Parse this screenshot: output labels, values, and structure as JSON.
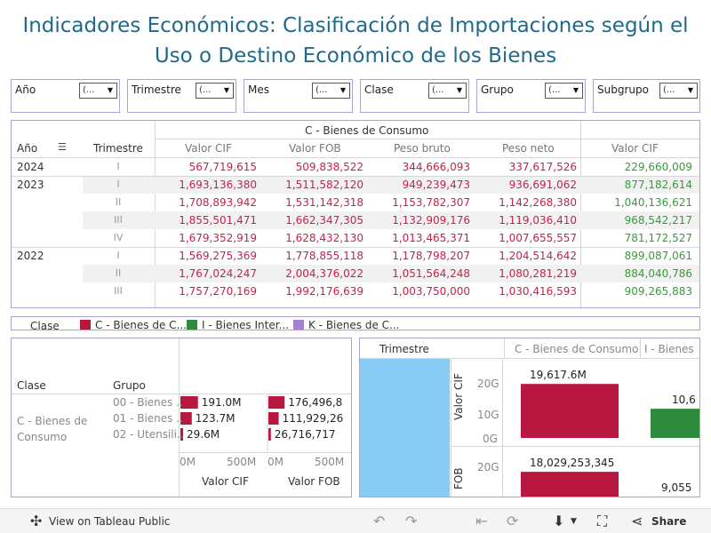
{
  "title": {
    "line1": "Indicadores Económicos:  Clasificación de Importaciones según el",
    "line2": "Uso o Destino Económico de los Bienes"
  },
  "filters": [
    {
      "label": "Año",
      "value": "(..."
    },
    {
      "label": "Trimestre",
      "value": "(..."
    },
    {
      "label": "Mes",
      "value": "(..."
    },
    {
      "label": "Clase",
      "value": "(..."
    },
    {
      "label": "Grupo",
      "value": "(..."
    },
    {
      "label": "Subgrupo",
      "value": "(..."
    }
  ],
  "table": {
    "group_header": "C - Bienes de Consumo",
    "col_year": "Año",
    "col_quarter": "Trimestre",
    "columns": [
      "Valor CIF",
      "Valor FOB",
      "Peso bruto",
      "Peso neto"
    ],
    "extra_column": "Valor CIF",
    "rows": [
      {
        "year": "2024",
        "quarter": "I",
        "cif": "567,719,615",
        "fob": "509,838,522",
        "bruto": "344,666,093",
        "neto": "337,617,526",
        "extra": "229,660,009"
      },
      {
        "year": "2023",
        "quarter": "I",
        "cif": "1,693,136,380",
        "fob": "1,511,582,120",
        "bruto": "949,239,473",
        "neto": "936,691,062",
        "extra": "877,182,614"
      },
      {
        "year": "",
        "quarter": "II",
        "cif": "1,708,893,942",
        "fob": "1,531,142,318",
        "bruto": "1,153,782,307",
        "neto": "1,142,268,380",
        "extra": "1,040,136,621"
      },
      {
        "year": "",
        "quarter": "III",
        "cif": "1,855,501,471",
        "fob": "1,662,347,305",
        "bruto": "1,132,909,176",
        "neto": "1,119,036,410",
        "extra": "968,542,217"
      },
      {
        "year": "",
        "quarter": "IV",
        "cif": "1,679,352,919",
        "fob": "1,628,432,130",
        "bruto": "1,013,465,371",
        "neto": "1,007,655,557",
        "extra": "781,172,527"
      },
      {
        "year": "2022",
        "quarter": "I",
        "cif": "1,569,275,369",
        "fob": "1,778,855,118",
        "bruto": "1,178,798,207",
        "neto": "1,204,514,642",
        "extra": "899,087,061"
      },
      {
        "year": "",
        "quarter": "II",
        "cif": "1,767,024,247",
        "fob": "2,004,376,022",
        "bruto": "1,051,564,248",
        "neto": "1,080,281,219",
        "extra": "884,040,786"
      },
      {
        "year": "",
        "quarter": "III",
        "cif": "1,757,270,169",
        "fob": "1,992,176,639",
        "bruto": "1,003,750,000",
        "neto": "1,030,416,593",
        "extra": "909,265,883"
      }
    ]
  },
  "legend": {
    "title": "Clase",
    "items": [
      {
        "label": "C - Bienes de C...",
        "color": "#b8173f"
      },
      {
        "label": "I - Bienes Inter...",
        "color": "#2e8b3e"
      },
      {
        "label": "K - Bienes de C...",
        "color": "#a97fd0"
      }
    ]
  },
  "group_chart": {
    "col_clase": "Clase",
    "col_grupo": "Grupo",
    "clase_line1": "C - Bienes de",
    "clase_line2": "Consumo",
    "groups": [
      "00 - Bienes ..",
      "01 - Bienes ..",
      "02 - Utensili.."
    ],
    "cif_labels": [
      "191.0M",
      "123.7M",
      "29.6M"
    ],
    "fob_labels": [
      "176,496,8",
      "111,929,26",
      "26,716,717"
    ],
    "axis_ticks": [
      "0M",
      "500M"
    ],
    "axis_cif": "Valor CIF",
    "axis_fob": "Valor FOB",
    "chart_data": {
      "type": "bar",
      "categories": [
        "00 - Bienes ..",
        "01 - Bienes ..",
        "02 - Utensili.."
      ],
      "series": [
        {
          "name": "Valor CIF",
          "values": [
            191000000,
            123700000,
            29600000
          ]
        },
        {
          "name": "Valor FOB",
          "values": [
            176496800,
            111929260,
            26716717
          ]
        }
      ],
      "xlim": [
        0,
        600000000
      ]
    }
  },
  "quarter_chart": {
    "col_trimestre": "Trimestre",
    "col_c": "C - Bienes de Consumo",
    "col_i": "I - Bienes",
    "axis_cif": "Valor CIF",
    "axis_fob": "FOB",
    "cif_ticks": [
      "20G",
      "10G",
      "0G"
    ],
    "fob_ticks": [
      "20G"
    ],
    "cif_c_label": "19,617.6M",
    "cif_i_label": "10,6",
    "fob_c_label": "18,029,253,345",
    "fob_i_label": "9,055",
    "chart_data": {
      "type": "bar",
      "categories": [
        "C - Bienes de Consumo",
        "I - Bienes"
      ],
      "series": [
        {
          "name": "Valor CIF",
          "values": [
            19617600000,
            10600000000
          ]
        },
        {
          "name": "FOB",
          "values": [
            18029253345,
            9055000000
          ]
        }
      ],
      "ylim": [
        0,
        25000000000
      ]
    }
  },
  "footer": {
    "view_label": "View on Tableau Public",
    "share_label": "Share"
  }
}
